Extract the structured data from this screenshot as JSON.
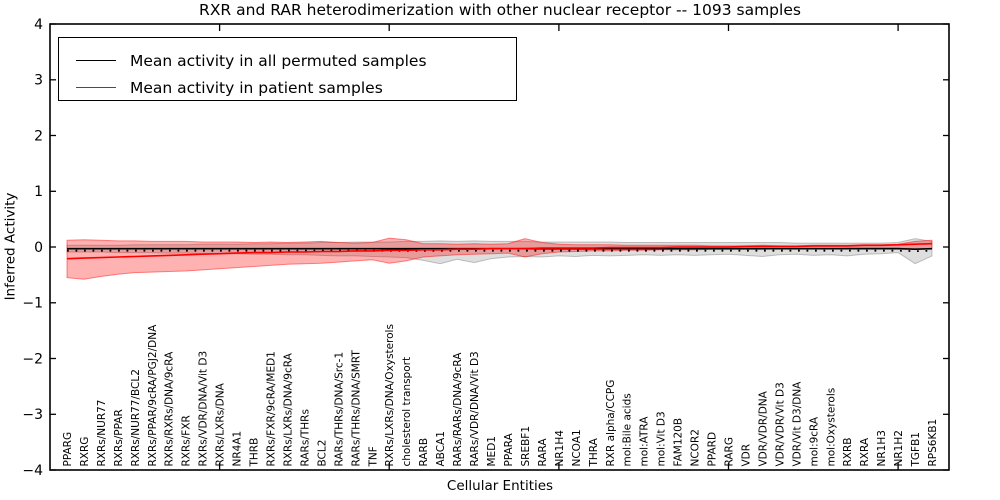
{
  "title": "RXR and RAR heterodimerization with other nuclear receptor -- 1093 samples",
  "axes": {
    "x_label": "Cellular Entities",
    "y_label": "Inferred Activity",
    "y_tick_labels": [
      "4",
      "3",
      "2",
      "1",
      "0",
      "−1",
      "−2",
      "−3",
      "−4"
    ],
    "y_tick_values": [
      4,
      3,
      2,
      1,
      0,
      -1,
      -2,
      -3,
      -4
    ],
    "x_major_tick_indices": [
      9,
      19,
      29,
      39,
      49
    ],
    "ylim": [
      -4,
      4
    ]
  },
  "legend": {
    "items": [
      {
        "label": "Mean activity in all permuted samples",
        "color": "#000000"
      },
      {
        "label": "Mean activity in patient samples",
        "color": "#ff0000"
      }
    ]
  },
  "colors": {
    "frame": "#000000",
    "permuted_line": "#000000",
    "patient_line": "#ff0000",
    "permuted_band_fill": "rgba(0,0,0,0.13)",
    "permuted_band_edge": "rgba(0,0,0,0.22)",
    "patient_band_fill": "rgba(255,0,0,0.30)",
    "patient_band_edge": "rgba(255,0,0,0.45)"
  },
  "chart_data": {
    "type": "line",
    "title": "RXR and RAR heterodimerization with other nuclear receptor -- 1093 samples",
    "xlabel": "Cellular Entities",
    "ylabel": "Inferred Activity",
    "ylim": [
      -4,
      4
    ],
    "grid": false,
    "legend_position": "upper left",
    "categories": [
      "PPARG",
      "RXRG",
      "RXRs/NUR77",
      "RXRs/PPAR",
      "RXRs/NUR77/BCL2",
      "RXRs/PPAR/9cRA/PGJ2/DNA",
      "RXRs/RXRs/DNA/9cRA",
      "RXRs/FXR",
      "RXRs/VDR/DNA/Vit D3",
      "RXRs/LXRs/DNA",
      "NR4A1",
      "THRB",
      "RXRs/FXR/9cRA/MED1",
      "RXRs/LXRs/DNA/9cRA",
      "RARs/THRs",
      "BCL2",
      "RARs/THRs/DNA/Src-1",
      "RARs/THRs/DNA/SMRT",
      "TNF",
      "RXRs/LXRs/DNA/Oxysterols",
      "cholesterol transport",
      "RARB",
      "ABCA1",
      "RARs/RARs/DNA/9cRA",
      "RARs/VDR/DNA/Vit D3",
      "MED1",
      "PPARA",
      "SREBF1",
      "RARA",
      "NR1H4",
      "NCOA1",
      "THRA",
      "RXR alpha/CCPG",
      "mol:Bile acids",
      "mol:ATRA",
      "mol:Vit D3",
      "FAM120B",
      "NCOR2",
      "PPARD",
      "RARG",
      "VDR",
      "VDR/VDR/DNA",
      "VDR/VDR/Vit D3",
      "VDR/Vit D3/DNA",
      "mol:9cRA",
      "mol:Oxysterols",
      "RXRB",
      "RXRA",
      "NR1H3",
      "NR1H2",
      "TGFB1",
      "RPS6KB1"
    ],
    "series": [
      {
        "name": "Mean activity in all permuted samples",
        "color": "#000000",
        "values": [
          -0.03,
          -0.03,
          -0.03,
          -0.03,
          -0.03,
          -0.03,
          -0.03,
          -0.03,
          -0.03,
          -0.03,
          -0.03,
          -0.03,
          -0.03,
          -0.03,
          -0.03,
          -0.03,
          -0.03,
          -0.03,
          -0.03,
          -0.03,
          -0.03,
          -0.03,
          -0.03,
          -0.03,
          -0.03,
          -0.03,
          -0.03,
          -0.03,
          -0.03,
          -0.03,
          -0.03,
          -0.03,
          -0.03,
          -0.03,
          -0.03,
          -0.03,
          -0.03,
          -0.03,
          -0.03,
          -0.03,
          -0.03,
          -0.03,
          -0.03,
          -0.03,
          -0.03,
          -0.03,
          -0.03,
          -0.03,
          -0.03,
          -0.03,
          -0.04,
          -0.03
        ],
        "band_upper": [
          0.03,
          0.03,
          0.03,
          0.03,
          0.04,
          0.04,
          0.04,
          0.04,
          0.05,
          0.05,
          0.05,
          0.06,
          0.06,
          0.07,
          0.07,
          0.08,
          0.08,
          0.09,
          0.09,
          0.09,
          0.1,
          0.1,
          0.11,
          0.1,
          0.11,
          0.1,
          0.1,
          0.1,
          0.09,
          0.09,
          0.09,
          0.09,
          0.09,
          0.08,
          0.08,
          0.08,
          0.08,
          0.08,
          0.08,
          0.08,
          0.08,
          0.08,
          0.08,
          0.07,
          0.07,
          0.07,
          0.07,
          0.07,
          0.07,
          0.08,
          0.15,
          0.1
        ],
        "band_lower": [
          -0.09,
          -0.09,
          -0.09,
          -0.1,
          -0.1,
          -0.1,
          -0.11,
          -0.11,
          -0.12,
          -0.12,
          -0.12,
          -0.13,
          -0.13,
          -0.14,
          -0.14,
          -0.15,
          -0.16,
          -0.16,
          -0.17,
          -0.18,
          -0.19,
          -0.24,
          -0.3,
          -0.22,
          -0.28,
          -0.21,
          -0.18,
          -0.17,
          -0.18,
          -0.16,
          -0.17,
          -0.15,
          -0.16,
          -0.15,
          -0.14,
          -0.15,
          -0.14,
          -0.15,
          -0.14,
          -0.13,
          -0.15,
          -0.17,
          -0.14,
          -0.13,
          -0.15,
          -0.14,
          -0.16,
          -0.13,
          -0.12,
          -0.1,
          -0.3,
          -0.16
        ]
      },
      {
        "name": "Mean activity in patient samples",
        "color": "#ff0000",
        "values": [
          -0.21,
          -0.2,
          -0.19,
          -0.18,
          -0.17,
          -0.16,
          -0.15,
          -0.14,
          -0.13,
          -0.12,
          -0.11,
          -0.1,
          -0.1,
          -0.09,
          -0.09,
          -0.08,
          -0.08,
          -0.07,
          -0.07,
          -0.06,
          -0.06,
          -0.05,
          -0.05,
          -0.04,
          -0.04,
          -0.03,
          -0.03,
          -0.03,
          -0.02,
          -0.02,
          -0.02,
          -0.02,
          -0.01,
          -0.01,
          -0.01,
          -0.01,
          0.0,
          0.0,
          0.0,
          0.0,
          0.01,
          0.01,
          0.01,
          0.01,
          0.02,
          0.02,
          0.02,
          0.03,
          0.03,
          0.04,
          0.05,
          0.06
        ],
        "band_upper": [
          0.12,
          0.13,
          0.12,
          0.11,
          0.11,
          0.1,
          0.1,
          0.1,
          0.09,
          0.09,
          0.09,
          0.08,
          0.09,
          0.08,
          0.09,
          0.1,
          0.08,
          0.07,
          0.08,
          0.16,
          0.13,
          0.06,
          0.06,
          0.05,
          0.06,
          0.05,
          0.06,
          0.15,
          0.08,
          0.05,
          0.04,
          0.04,
          0.04,
          0.03,
          0.03,
          0.03,
          0.03,
          0.03,
          0.02,
          0.02,
          0.02,
          0.03,
          0.02,
          0.02,
          0.03,
          0.03,
          0.03,
          0.04,
          0.04,
          0.05,
          0.1,
          0.12
        ],
        "band_lower": [
          -0.55,
          -0.58,
          -0.53,
          -0.49,
          -0.46,
          -0.45,
          -0.44,
          -0.43,
          -0.41,
          -0.39,
          -0.37,
          -0.35,
          -0.33,
          -0.31,
          -0.3,
          -0.29,
          -0.27,
          -0.25,
          -0.23,
          -0.29,
          -0.25,
          -0.18,
          -0.16,
          -0.14,
          -0.13,
          -0.12,
          -0.11,
          -0.18,
          -0.12,
          -0.09,
          -0.08,
          -0.07,
          -0.07,
          -0.06,
          -0.06,
          -0.05,
          -0.05,
          -0.05,
          -0.04,
          -0.04,
          -0.04,
          -0.04,
          -0.03,
          -0.03,
          -0.03,
          -0.03,
          -0.02,
          -0.02,
          -0.02,
          -0.02,
          -0.04,
          -0.03
        ]
      }
    ]
  }
}
